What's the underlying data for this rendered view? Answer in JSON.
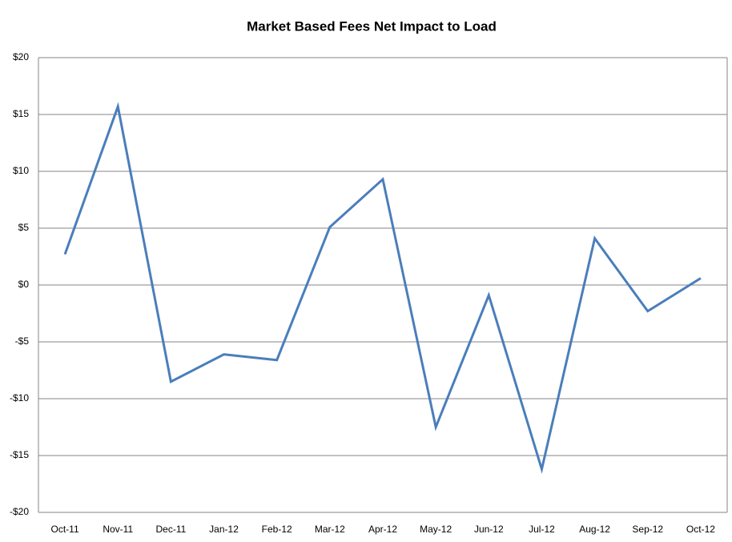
{
  "chart_data": {
    "type": "line",
    "title": "Market Based Fees Net Impact to Load",
    "categories": [
      "Oct-11",
      "Nov-11",
      "Dec-11",
      "Jan-12",
      "Feb-12",
      "Mar-12",
      "Apr-12",
      "May-12",
      "Jun-12",
      "Jul-12",
      "Aug-12",
      "Sep-12",
      "Oct-12"
    ],
    "values": [
      2.7,
      15.7,
      -8.5,
      -6.1,
      -6.6,
      5.1,
      9.3,
      -12.5,
      -0.9,
      -16.2,
      4.1,
      -2.3,
      0.6
    ],
    "color": "#4a7ebb",
    "ylim": [
      -20,
      20
    ],
    "yticks": [
      {
        "value": -20,
        "label": "-$20"
      },
      {
        "value": -15,
        "label": "-$15"
      },
      {
        "value": -10,
        "label": "-$10"
      },
      {
        "value": -5,
        "label": "-$5"
      },
      {
        "value": 0,
        "label": "$0"
      },
      {
        "value": 5,
        "label": "$5"
      },
      {
        "value": 10,
        "label": "$10"
      },
      {
        "value": 15,
        "label": "$15"
      },
      {
        "value": 20,
        "label": "$20"
      }
    ],
    "grid": true
  }
}
